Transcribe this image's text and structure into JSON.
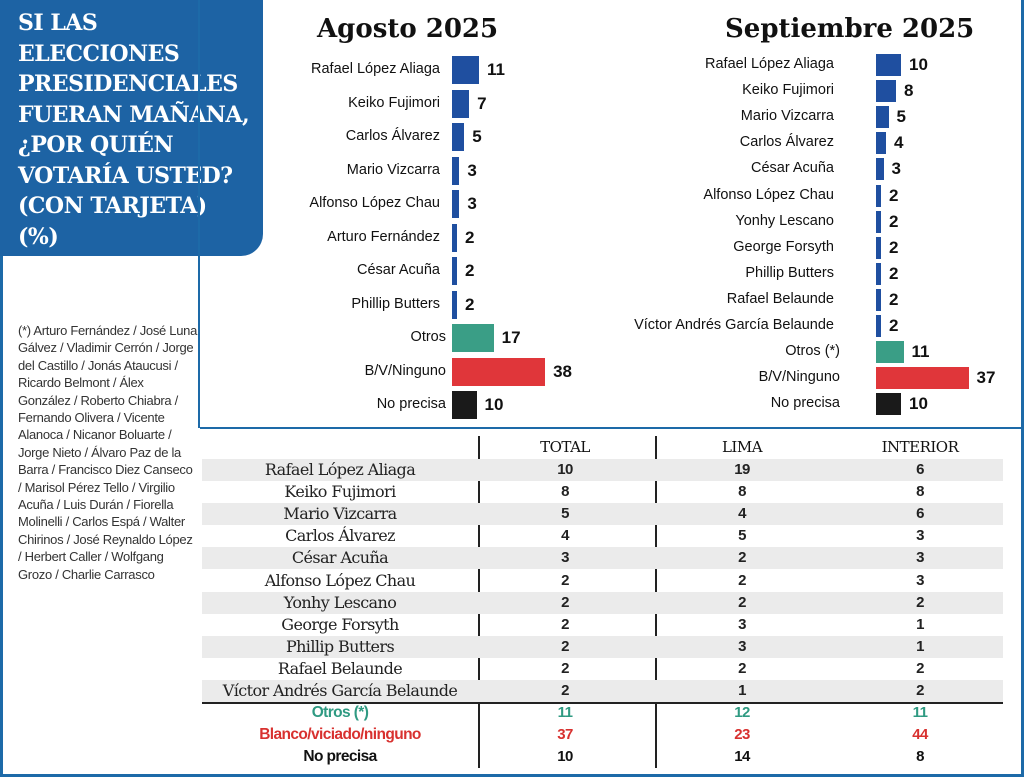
{
  "title": "SI LAS ELECCIONES PRESIDENCIALES FUERAN MAÑANA, ¿POR QUIÉN VOTARÍA USTED? (CON TARJETA) (%)",
  "footnote": "(*) Arturo Fernández / José Luna Gálvez / Vladimir Cerrón / Jorge del Castillo / Jonás Ataucusi / Ricardo Belmont / Álex González / Roberto Chiabra / Fernando Olivera / Vicente Alanoca / Nicanor Boluarte / Jorge Nieto / Álvaro Paz de la Barra / Francisco Diez Canseco / Marisol Pérez Tello / Virgilio Acuña / Luis Durán / Fiorella Molinelli / Carlos Espá / Walter Chirinos / José Reynaldo López / Herbert Caller / Wolfgang Grozo / Charlie Carrasco",
  "colors": {
    "candidate": "#1f4fa0",
    "otros": "#3a9e86",
    "blank": "#e0363a",
    "noprecisa": "#1a1a1a",
    "frame": "#1d6aa8"
  },
  "chart_data": [
    {
      "type": "bar",
      "title": "Agosto 2025",
      "categories": [
        "Rafael López Aliaga",
        "Keiko Fujimori",
        "Carlos Álvarez",
        "Mario Vizcarra",
        "Alfonso López Chau",
        "Arturo Fernández",
        "César Acuña",
        "Phillip Butters",
        "Otros",
        "B/V/Ninguno",
        "No precisa"
      ],
      "values": [
        11,
        7,
        5,
        3,
        3,
        2,
        2,
        2,
        17,
        38,
        10
      ],
      "kinds": [
        "c",
        "c",
        "c",
        "c",
        "c",
        "c",
        "c",
        "c",
        "o",
        "b",
        "n"
      ],
      "unit": "%"
    },
    {
      "type": "bar",
      "title": "Septiembre 2025",
      "categories": [
        "Rafael López Aliaga",
        "Keiko Fujimori",
        "Mario Vizcarra",
        "Carlos Álvarez",
        "César Acuña",
        "Alfonso López Chau",
        "Yonhy Lescano",
        "George Forsyth",
        "Phillip Butters",
        "Rafael Belaunde",
        "Víctor Andrés García Belaunde",
        "Otros (*)",
        "B/V/Ninguno",
        "No precisa"
      ],
      "values": [
        10,
        8,
        5,
        4,
        3,
        2,
        2,
        2,
        2,
        2,
        2,
        11,
        37,
        10
      ],
      "kinds": [
        "c",
        "c",
        "c",
        "c",
        "c",
        "c",
        "c",
        "c",
        "c",
        "c",
        "c",
        "o",
        "b",
        "n"
      ],
      "unit": "%"
    },
    {
      "type": "table",
      "columns": [
        "TOTAL",
        "LIMA",
        "INTERIOR"
      ],
      "rows": [
        {
          "name": "Rafael López Aliaga",
          "values": [
            10,
            19,
            6
          ],
          "kind": "c"
        },
        {
          "name": "Keiko Fujimori",
          "values": [
            8,
            8,
            8
          ],
          "kind": "c"
        },
        {
          "name": "Mario Vizcarra",
          "values": [
            5,
            4,
            6
          ],
          "kind": "c"
        },
        {
          "name": "Carlos Álvarez",
          "values": [
            4,
            5,
            3
          ],
          "kind": "c"
        },
        {
          "name": "César Acuña",
          "values": [
            3,
            2,
            3
          ],
          "kind": "c"
        },
        {
          "name": "Alfonso López Chau",
          "values": [
            2,
            2,
            3
          ],
          "kind": "c"
        },
        {
          "name": "Yonhy Lescano",
          "values": [
            2,
            2,
            2
          ],
          "kind": "c"
        },
        {
          "name": "George Forsyth",
          "values": [
            2,
            3,
            1
          ],
          "kind": "c"
        },
        {
          "name": "Phillip Butters",
          "values": [
            2,
            3,
            1
          ],
          "kind": "c"
        },
        {
          "name": "Rafael Belaunde",
          "values": [
            2,
            2,
            2
          ],
          "kind": "c"
        },
        {
          "name": "Víctor Andrés García Belaunde",
          "values": [
            2,
            1,
            2
          ],
          "kind": "c"
        },
        {
          "name": "Otros (*)",
          "values": [
            11,
            12,
            11
          ],
          "kind": "o"
        },
        {
          "name": "Blanco/viciado/ninguno",
          "values": [
            37,
            23,
            44
          ],
          "kind": "b"
        },
        {
          "name": "No precisa",
          "values": [
            10,
            14,
            8
          ],
          "kind": "n"
        }
      ]
    }
  ]
}
